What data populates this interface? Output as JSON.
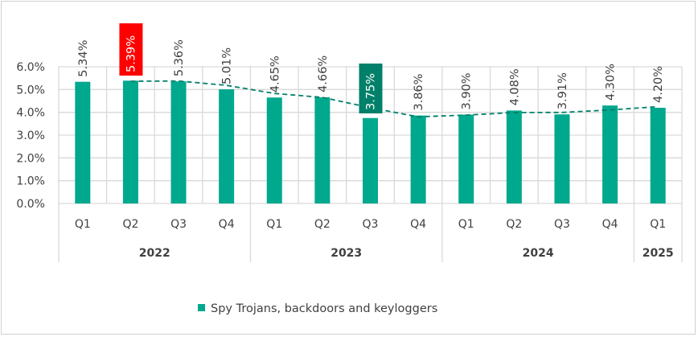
{
  "chart_data": {
    "type": "bar",
    "title": "",
    "xlabel": "",
    "ylabel": "",
    "ylim": [
      0,
      6
    ],
    "yticks": [
      "0.0%",
      "1.0%",
      "2.0%",
      "3.0%",
      "4.0%",
      "5.0%",
      "6.0%"
    ],
    "grid": true,
    "legend_position": "bottom",
    "categories": [
      "Q1",
      "Q2",
      "Q3",
      "Q4",
      "Q1",
      "Q2",
      "Q3",
      "Q4",
      "Q1",
      "Q2",
      "Q3",
      "Q4",
      "Q1"
    ],
    "groups": [
      {
        "label": "2022",
        "count": 4
      },
      {
        "label": "2023",
        "count": 4
      },
      {
        "label": "2024",
        "count": 4
      },
      {
        "label": "2025",
        "count": 1
      }
    ],
    "series": [
      {
        "name": "Spy Trojans, backdoors and keyloggers",
        "color": "#00a88e",
        "values": [
          5.34,
          5.39,
          5.36,
          5.01,
          4.65,
          4.66,
          3.75,
          3.86,
          3.9,
          4.08,
          3.91,
          4.3,
          4.2
        ],
        "labels": [
          "5.34%",
          "5.39%",
          "5.36%",
          "5.01%",
          "4.65%",
          "4.66%",
          "3.75%",
          "3.86%",
          "3.90%",
          "4.08%",
          "3.91%",
          "4.30%",
          "4.20%"
        ]
      }
    ],
    "highlights": {
      "max_index": 1,
      "max_color": "#ff0000",
      "min_index": 6,
      "min_color": "#00806a"
    },
    "trendline": {
      "type": "moving-average",
      "period": 2,
      "style": "dashed",
      "color": "#00806a"
    }
  }
}
